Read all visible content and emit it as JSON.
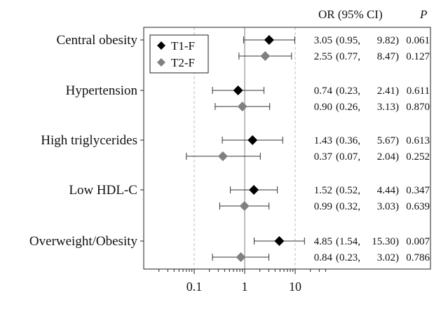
{
  "chart_data": {
    "type": "forest",
    "x_scale": "log",
    "xlim": [
      0.02,
      40
    ],
    "x_ticks": [
      0.1,
      1,
      10
    ],
    "x_tick_labels": [
      "0.1",
      "1",
      "10"
    ],
    "reference_line": 1,
    "grid": "dashed vertical lines at 0.1 and 10",
    "legend_placement": "top-left",
    "header": {
      "or_ci": "OR (95% CI)",
      "p": "P"
    },
    "series": [
      {
        "name": "T1-F",
        "marker": "diamond",
        "color": "#000000"
      },
      {
        "name": "T2-F",
        "marker": "diamond",
        "color": "#808080"
      }
    ],
    "groups": [
      {
        "label": "Central obesity",
        "rows": [
          {
            "series": "T1-F",
            "or": 3.05,
            "lo": 0.95,
            "hi": 9.82,
            "p": "0.061",
            "or_text": "3.05",
            "lo_text": "(0.95,",
            "hi_text": "9.82)"
          },
          {
            "series": "T2-F",
            "or": 2.55,
            "lo": 0.77,
            "hi": 8.47,
            "p": "0.127",
            "or_text": "2.55",
            "lo_text": "(0.77,",
            "hi_text": "8.47)"
          }
        ]
      },
      {
        "label": "Hypertension",
        "rows": [
          {
            "series": "T1-F",
            "or": 0.74,
            "lo": 0.23,
            "hi": 2.41,
            "p": "0.611",
            "or_text": "0.74",
            "lo_text": "(0.23,",
            "hi_text": "2.41)"
          },
          {
            "series": "T2-F",
            "or": 0.9,
            "lo": 0.26,
            "hi": 3.13,
            "p": "0.870",
            "or_text": "0.90",
            "lo_text": "(0.26,",
            "hi_text": "3.13)"
          }
        ]
      },
      {
        "label": "High triglycerides",
        "rows": [
          {
            "series": "T1-F",
            "or": 1.43,
            "lo": 0.36,
            "hi": 5.67,
            "p": "0.613",
            "or_text": "1.43",
            "lo_text": "(0.36,",
            "hi_text": "5.67)"
          },
          {
            "series": "T2-F",
            "or": 0.37,
            "lo": 0.07,
            "hi": 2.04,
            "p": "0.252",
            "or_text": "0.37",
            "lo_text": "(0.07,",
            "hi_text": "2.04)"
          }
        ]
      },
      {
        "label": "Low HDL-C",
        "rows": [
          {
            "series": "T1-F",
            "or": 1.52,
            "lo": 0.52,
            "hi": 4.44,
            "p": "0.347",
            "or_text": "1.52",
            "lo_text": "(0.52,",
            "hi_text": "4.44)"
          },
          {
            "series": "T2-F",
            "or": 0.99,
            "lo": 0.32,
            "hi": 3.03,
            "p": "0.639",
            "or_text": "0.99",
            "lo_text": "(0.32,",
            "hi_text": "3.03)"
          }
        ]
      },
      {
        "label": "Overweight/Obesity",
        "rows": [
          {
            "series": "T1-F",
            "or": 4.85,
            "lo": 1.54,
            "hi": 15.3,
            "p": "0.007",
            "or_text": "4.85",
            "lo_text": "(1.54,",
            "hi_text": "15.30)"
          },
          {
            "series": "T2-F",
            "or": 0.84,
            "lo": 0.23,
            "hi": 3.02,
            "p": "0.786",
            "or_text": "0.84",
            "lo_text": "(0.23,",
            "hi_text": "3.02)"
          }
        ]
      }
    ]
  }
}
